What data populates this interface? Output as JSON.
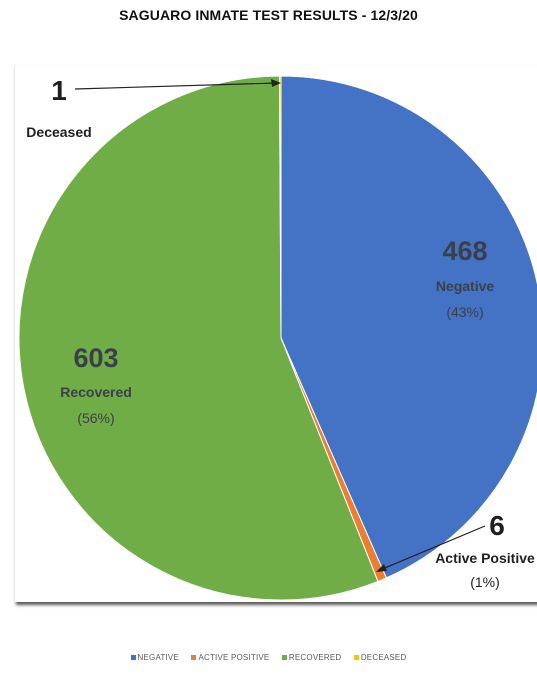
{
  "chart_data": {
    "type": "pie",
    "title": "SAGUARO INMATE TEST RESULTS - 12/3/20",
    "slices": [
      {
        "label": "NEGATIVE",
        "name": "Negative",
        "value": 468,
        "percent_label": "(43%)",
        "color": "#4472C4"
      },
      {
        "label": "ACTIVE POSITIVE",
        "name": "Active Positive",
        "value": 6,
        "percent_label": "(1%)",
        "color": "#ED7D31"
      },
      {
        "label": "RECOVERED",
        "name": "Recovered",
        "value": 603,
        "percent_label": "(56%)",
        "color": "#70AD47"
      },
      {
        "label": "DECEASED",
        "name": "Deceased",
        "value": 1,
        "percent_label": "",
        "color": "#FFC000"
      }
    ],
    "start_angle_deg": 0,
    "direction": "clockwise",
    "legend_position": "bottom"
  }
}
